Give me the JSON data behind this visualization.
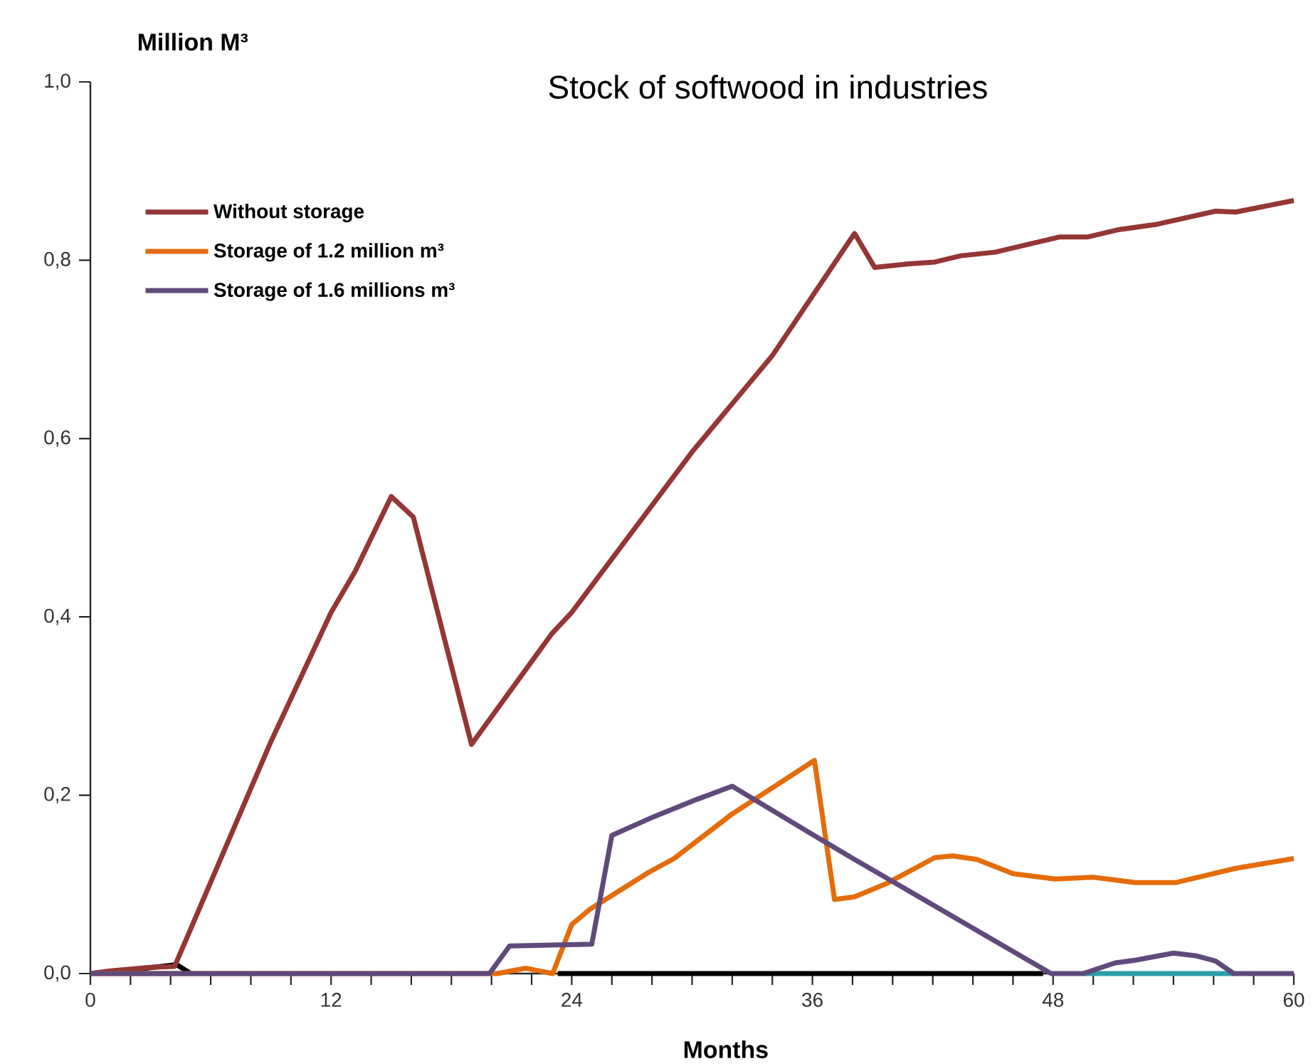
{
  "chart_data": {
    "type": "line",
    "title": "Stock of softwood in industries",
    "xlabel": "Months",
    "ylabel": "Million M³",
    "xlim": [
      0,
      60
    ],
    "ylim": [
      0,
      1.0
    ],
    "xticks": [
      0,
      {
        "value": 2,
        "label": null
      },
      {
        "value": 4,
        "label": null
      },
      {
        "value": 6,
        "label": null
      },
      {
        "value": 8,
        "label": null
      },
      {
        "value": 10,
        "label": null
      },
      12,
      {
        "value": 14,
        "label": null
      },
      {
        "value": 16,
        "label": null
      },
      {
        "value": 18,
        "label": null
      },
      {
        "value": 20,
        "label": null
      },
      {
        "value": 22,
        "label": null
      },
      24,
      {
        "value": 26,
        "label": null
      },
      {
        "value": 28,
        "label": null
      },
      {
        "value": 30,
        "label": null
      },
      {
        "value": 32,
        "label": null
      },
      {
        "value": 34,
        "label": null
      },
      36,
      {
        "value": 38,
        "label": null
      },
      {
        "value": 40,
        "label": null
      },
      {
        "value": 42,
        "label": null
      },
      {
        "value": 44,
        "label": null
      },
      {
        "value": 46,
        "label": null
      },
      48,
      {
        "value": 50,
        "label": null
      },
      {
        "value": 52,
        "label": null
      },
      {
        "value": 54,
        "label": null
      },
      {
        "value": 56,
        "label": null
      },
      {
        "value": 58,
        "label": null
      },
      60
    ],
    "yticks": [
      {
        "value": 0,
        "label": "0,0"
      },
      {
        "value": 0.2,
        "label": "0,2"
      },
      {
        "value": 0.4,
        "label": "0,4"
      },
      {
        "value": 0.6,
        "label": "0,6"
      },
      {
        "value": 0.8,
        "label": "0,8"
      },
      {
        "value": 1.0,
        "label": "1,0"
      }
    ],
    "legend": "top left",
    "series": [
      {
        "color": "#000000",
        "x": [
          0,
          2,
          4.3,
          5,
          14,
          23.3,
          47.5
        ],
        "values": [
          0,
          0.004,
          0.01,
          0,
          null,
          0,
          0
        ]
      },
      {
        "color": "#2aa0a8",
        "x": [
          49.5,
          57
        ],
        "values": [
          0,
          0
        ]
      },
      {
        "name": "Without storage",
        "color": "#943634",
        "x": [
          0,
          1,
          2,
          3,
          4.2,
          9,
          12,
          13.2,
          15,
          16.1,
          19,
          23,
          24,
          30,
          34,
          38.1,
          39.1,
          40.8,
          42.1,
          43.4,
          45.1,
          48.3,
          49.7,
          51.2,
          53.1,
          56.1,
          57.1,
          60
        ],
        "values": [
          0,
          0.003,
          0.005,
          0.007,
          0.008,
          0.26,
          0.405,
          0.451,
          0.535,
          0.512,
          0.257,
          0.381,
          0.405,
          0.585,
          0.693,
          0.83,
          0.792,
          0.796,
          0.798,
          0.805,
          0.809,
          0.826,
          0.826,
          0.834,
          0.84,
          0.855,
          0.854,
          0.867
        ]
      },
      {
        "name": "Storage of 1.2 million m³",
        "color": "#e46c0a",
        "x": [
          0,
          20.3,
          21.7,
          23.05,
          24,
          24.9,
          27.8,
          29.1,
          32,
          36.1,
          37.1,
          38.1,
          39.7,
          42.1,
          43,
          44.2,
          46,
          48.1,
          50,
          52.1,
          54.1,
          57.1,
          60
        ],
        "values": [
          0,
          0,
          0.006,
          0,
          0.055,
          0.072,
          0.113,
          0.129,
          0.179,
          0.239,
          0.083,
          0.086,
          0.101,
          0.13,
          0.132,
          0.128,
          0.112,
          0.106,
          0.108,
          0.102,
          0.102,
          0.118,
          0.129
        ]
      },
      {
        "name": "Storage of 1.6 millions m³",
        "color": "#604a7b",
        "x": [
          0,
          19.9,
          20.9,
          25,
          26,
          28.1,
          30.2,
          32,
          36.3,
          38.1,
          47.9,
          49.5,
          51.1,
          52.1,
          54,
          55.1,
          56.1,
          57,
          60
        ],
        "values": [
          0,
          0,
          0.031,
          0.033,
          0.155,
          0.176,
          0.195,
          0.21,
          0.152,
          0.128,
          0,
          0,
          0.012,
          0.015,
          0.023,
          0.02,
          0.014,
          0,
          0
        ]
      }
    ]
  }
}
